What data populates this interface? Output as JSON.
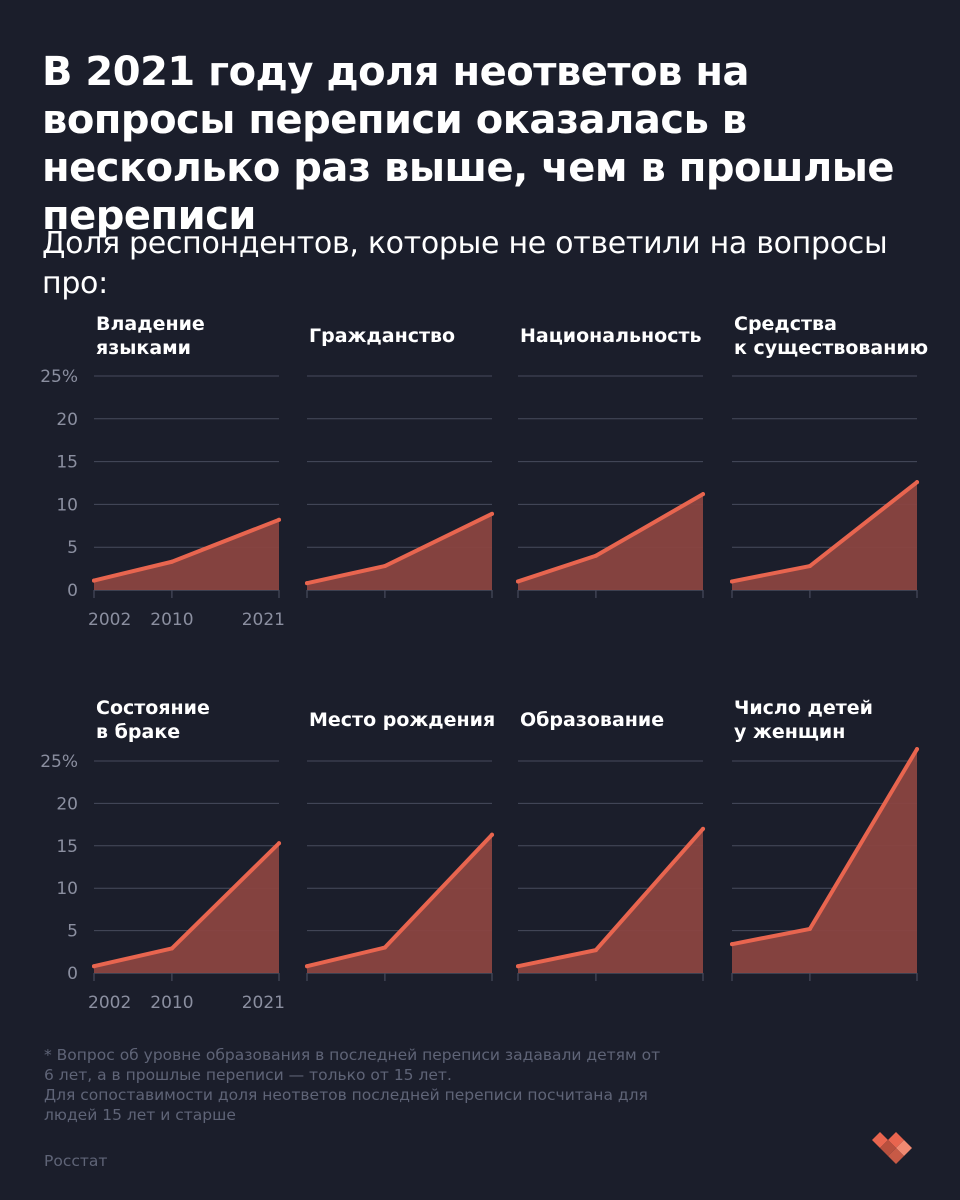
{
  "title": "В 2021 году доля неответов на вопросы переписи оказалась в несколько раз выше, чем в прошлые переписи",
  "subtitle": "Доля респондентов, которые не ответили на вопросы про:",
  "footnote_lines": [
    "* Вопрос об уровне образования в последней переписи задавали детям от",
    "6 лет, а в прошлые переписи — только от 15 лет.",
    "Для сопоставимости доля неответов последней переписи посчитана для",
    "людей 15 лет и старше"
  ],
  "source": "Росстат",
  "colors": {
    "background": "#1b1e2b",
    "line": "#e8654f",
    "area": "#8a4440",
    "grid": "#474b5c",
    "axis_text": "#8b8fa0"
  },
  "logo_icon": "double-heart-logo-icon",
  "chart_data": {
    "type": "area",
    "x": [
      2002,
      2010,
      2021
    ],
    "x_tick_labels": [
      "2002",
      "2010",
      "2021"
    ],
    "y_ticks": [
      0,
      5,
      10,
      15,
      20,
      25
    ],
    "y_tick_labels": [
      "0",
      "5",
      "10",
      "15",
      "20",
      "25%"
    ],
    "ylim": [
      0,
      25
    ],
    "grid": true,
    "layout": "small-multiples 2x4",
    "panels": [
      {
        "title_lines": [
          "Владение",
          "языками"
        ],
        "values": [
          1.1,
          3.3,
          8.2
        ]
      },
      {
        "title_lines": [
          "Гражданство"
        ],
        "values": [
          0.8,
          2.8,
          8.9
        ]
      },
      {
        "title_lines": [
          "Национальность"
        ],
        "values": [
          1.0,
          4.0,
          11.2
        ]
      },
      {
        "title_lines": [
          "Средства",
          "к существованию"
        ],
        "values": [
          1.0,
          2.8,
          12.6
        ]
      },
      {
        "title_lines": [
          "Состояние",
          "в браке"
        ],
        "values": [
          0.8,
          2.9,
          15.3
        ]
      },
      {
        "title_lines": [
          "Место рождения"
        ],
        "values": [
          0.8,
          3.0,
          16.3
        ]
      },
      {
        "title_lines": [
          "Образование"
        ],
        "values": [
          0.8,
          2.7,
          17.0
        ]
      },
      {
        "title_lines": [
          "Число детей",
          "у женщин"
        ],
        "values": [
          3.4,
          5.2,
          26.4
        ]
      }
    ]
  }
}
